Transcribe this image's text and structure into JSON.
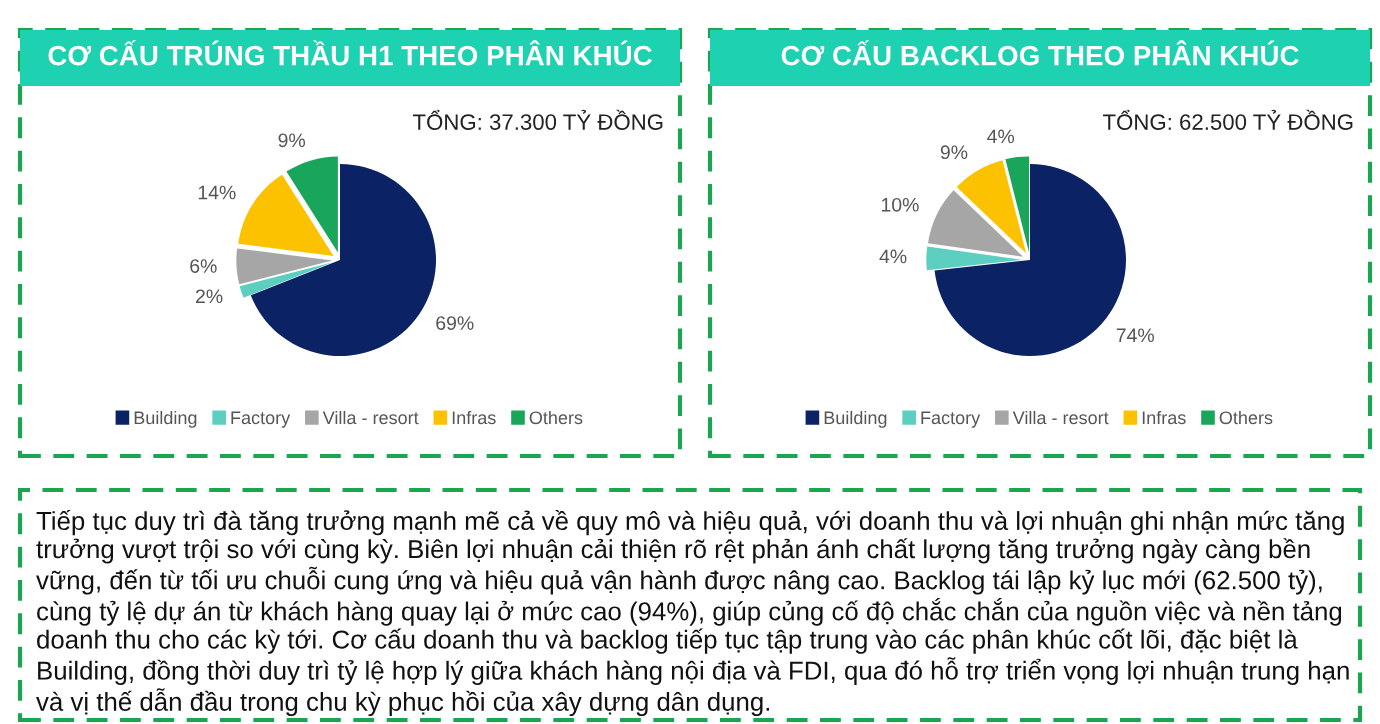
{
  "chart_data": [
    {
      "type": "pie",
      "title": "CƠ CẤU TRÚNG THẦU H1 THEO PHÂN KHÚC",
      "subtitle": "TỔNG: 37.300 TỶ ĐỒNG",
      "categories": [
        "Building",
        "Factory",
        "Villa - resort",
        "Infras",
        "Others"
      ],
      "values": [
        69,
        2,
        6,
        14,
        9
      ],
      "value_labels": [
        "69%",
        "2%",
        "6%",
        "14%",
        "9%"
      ],
      "colors": [
        "#0b2265",
        "#5ccfc0",
        "#a6a6a6",
        "#fcc200",
        "#19a65a"
      ],
      "legend": "bottom"
    },
    {
      "type": "pie",
      "title": "CƠ CẤU BACKLOG THEO PHÂN KHÚC",
      "subtitle": "TỔNG: 62.500 TỶ ĐỒNG",
      "categories": [
        "Building",
        "Factory",
        "Villa - resort",
        "Infras",
        "Others"
      ],
      "values": [
        74,
        4,
        10,
        9,
        4
      ],
      "value_labels": [
        "74%",
        "4%",
        "10%",
        "9%",
        "4%"
      ],
      "colors": [
        "#0b2265",
        "#5ccfc0",
        "#a6a6a6",
        "#fcc200",
        "#19a65a"
      ],
      "legend": "bottom"
    },
    {
      "type": "other",
      "annotations": [
        "Tiếp tục duy trì đà tăng trưởng mạnh mẽ cả về quy mô và hiệu quả, với doanh thu và lợi nhuận ghi nhận mức tăng trưởng vượt trội so với cùng kỳ. Biên lợi nhuận cải thiện rõ rệt phản ánh chất lượng tăng trưởng ngày càng bền vững, đến từ tối ưu chuỗi cung ứng và hiệu quả vận hành được nâng cao. Backlog tái lập kỷ lục mới (62.500 tỷ), cùng tỷ lệ dự án từ khách hàng quay lại ở mức cao (94%), giúp củng cố độ chắc chắn của nguồn việc và nền tảng doanh thu cho các kỳ tới. Cơ cấu doanh thu và backlog tiếp tục tập trung vào các phân khúc cốt lõi, đặc biệt là Building, đồng thời duy trì tỷ lệ hợp lý giữa khách hàng nội địa và FDI, qua đó hỗ trợ triển vọng lợi nhuận trung hạn và vị thế dẫn đầu trong chu kỳ phục hồi của xây dựng dân dụng."
      ]
    }
  ]
}
